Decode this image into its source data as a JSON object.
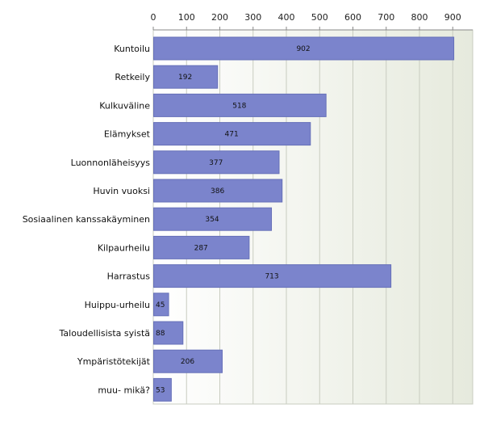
{
  "chart_data": {
    "type": "bar",
    "orientation": "horizontal",
    "categories": [
      "Kuntoilu",
      "Retkeily",
      "Kulkuväline",
      "Elämykset",
      "Luonnonläheisyys",
      "Huvin vuoksi",
      "Sosiaalinen kanssakäyminen",
      "Kilpaurheilu",
      "Harrastus",
      "Huippu-urheilu",
      "Taloudellisista syistä",
      "Ympäristötekijät",
      "muu- mikä?"
    ],
    "values": [
      902,
      192,
      518,
      471,
      377,
      386,
      354,
      287,
      713,
      45,
      88,
      206,
      53
    ],
    "xlim": [
      0,
      960
    ],
    "xticks": [
      0,
      100,
      200,
      300,
      400,
      500,
      600,
      700,
      800,
      900
    ],
    "axis_position": "top",
    "grid": true,
    "data_labels": true,
    "title": "",
    "xlabel": "",
    "ylabel": "",
    "colors": {
      "bar_fill": "#7b84cc",
      "bar_border": "#6670b8",
      "plot_bg_start": "#ffffff",
      "plot_bg_end": "#e6eadd",
      "gridline": "#c8ccc0",
      "axis": "#888888"
    }
  }
}
